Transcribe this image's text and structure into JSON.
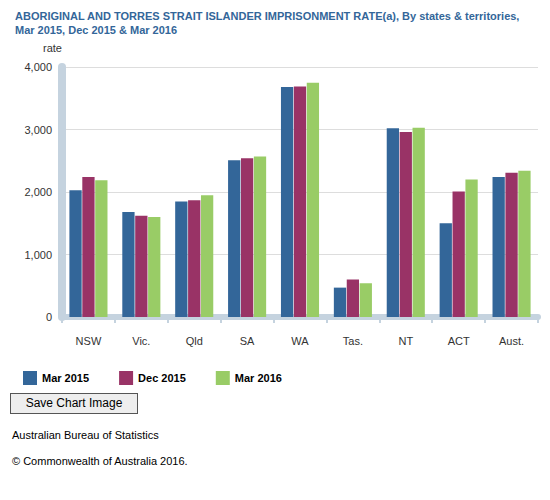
{
  "chart_data": {
    "type": "bar",
    "title": "ABORIGINAL AND TORRES STRAIT ISLANDER IMPRISONMENT RATE(a), By states & territories, Mar 2015, Dec 2015 & Mar 2016",
    "ylabel": "rate",
    "categories": [
      "NSW",
      "Vic.",
      "Qld",
      "SA",
      "WA",
      "Tas.",
      "NT",
      "ACT",
      "Aust."
    ],
    "series": [
      {
        "name": "Mar 2015",
        "color": "#336699",
        "values": [
          2030,
          1680,
          1850,
          2510,
          3680,
          470,
          3020,
          1500,
          2240
        ]
      },
      {
        "name": "Dec 2015",
        "color": "#993366",
        "values": [
          2240,
          1620,
          1870,
          2540,
          3690,
          600,
          2960,
          2010,
          2310
        ]
      },
      {
        "name": "Mar 2016",
        "color": "#99cc66",
        "values": [
          2190,
          1600,
          1950,
          2570,
          3750,
          540,
          3030,
          2200,
          2340
        ]
      }
    ],
    "ylim": [
      0,
      4000
    ],
    "yticks": [
      0,
      {
        "value": 1000,
        "label": "1,000"
      },
      {
        "value": 2000,
        "label": "2,000"
      },
      {
        "value": 3000,
        "label": "3,000"
      },
      {
        "value": 4000,
        "label": "4,000"
      }
    ],
    "grid": true,
    "legend": "bottom"
  },
  "page": {
    "button": "Save Chart Image",
    "footer": [
      "Australian Bureau of Statistics",
      "© Commonwealth of Australia 2016."
    ]
  }
}
